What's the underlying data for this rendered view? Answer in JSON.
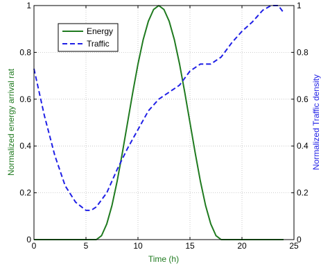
{
  "chart_data": {
    "type": "line",
    "xlabel": "Time (h)",
    "ylabel_left": "Normalized energy arrival rat",
    "ylabel_right": "Normalized Traffic density",
    "xlim": [
      0,
      25
    ],
    "ylim_left": [
      0,
      1
    ],
    "ylim_right": [
      0,
      1
    ],
    "xticks": [
      0,
      5,
      10,
      15,
      20,
      25
    ],
    "yticks_left": [
      0,
      0.2,
      0.4,
      0.6,
      0.8,
      1
    ],
    "yticks_right": [
      0,
      0.2,
      0.4,
      0.6,
      0.8,
      1
    ],
    "grid": true,
    "legend_position": "top-left",
    "series": [
      {
        "name": "Energy",
        "axis": "left",
        "color": "#1f7a1f",
        "style": "solid",
        "x": [
          0,
          6,
          6.5,
          7,
          7.5,
          8,
          8.5,
          9,
          9.5,
          10,
          10.5,
          11,
          11.5,
          12,
          12.5,
          13,
          13.5,
          14,
          14.5,
          15,
          15.5,
          16,
          16.5,
          17,
          17.5,
          18,
          24
        ],
        "values": [
          0,
          0,
          0.017,
          0.067,
          0.146,
          0.25,
          0.371,
          0.5,
          0.629,
          0.75,
          0.854,
          0.933,
          0.983,
          1.0,
          0.983,
          0.933,
          0.854,
          0.75,
          0.629,
          0.5,
          0.371,
          0.25,
          0.146,
          0.067,
          0.017,
          0,
          0
        ]
      },
      {
        "name": "Traffic",
        "axis": "right",
        "color": "#1f1fe6",
        "style": "dashed",
        "x": [
          0,
          1,
          2,
          3,
          4,
          5,
          5.5,
          6,
          7,
          8,
          9,
          10,
          11,
          12,
          13,
          14,
          15,
          16,
          17,
          18,
          19,
          20,
          21,
          22,
          22.8,
          23.5,
          24
        ],
        "values": [
          0.73,
          0.53,
          0.36,
          0.23,
          0.16,
          0.125,
          0.125,
          0.14,
          0.2,
          0.3,
          0.39,
          0.47,
          0.55,
          0.6,
          0.63,
          0.66,
          0.72,
          0.75,
          0.75,
          0.78,
          0.84,
          0.89,
          0.93,
          0.98,
          1.0,
          1.0,
          0.97
        ]
      }
    ]
  }
}
